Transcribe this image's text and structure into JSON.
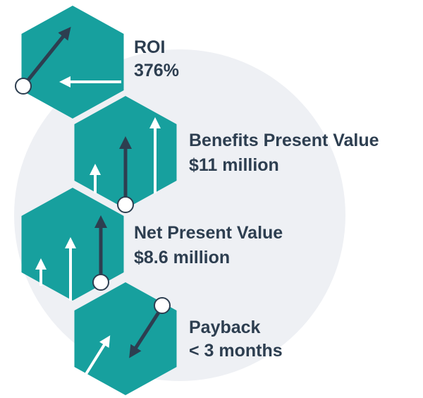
{
  "items": [
    {
      "label": "ROI",
      "value": "376%"
    },
    {
      "label": "Benefits Present Value",
      "value": "$11 million"
    },
    {
      "label": "Net Present Value",
      "value": "$8.6 million"
    },
    {
      "label": "Payback",
      "value": "< 3 months"
    }
  ]
}
